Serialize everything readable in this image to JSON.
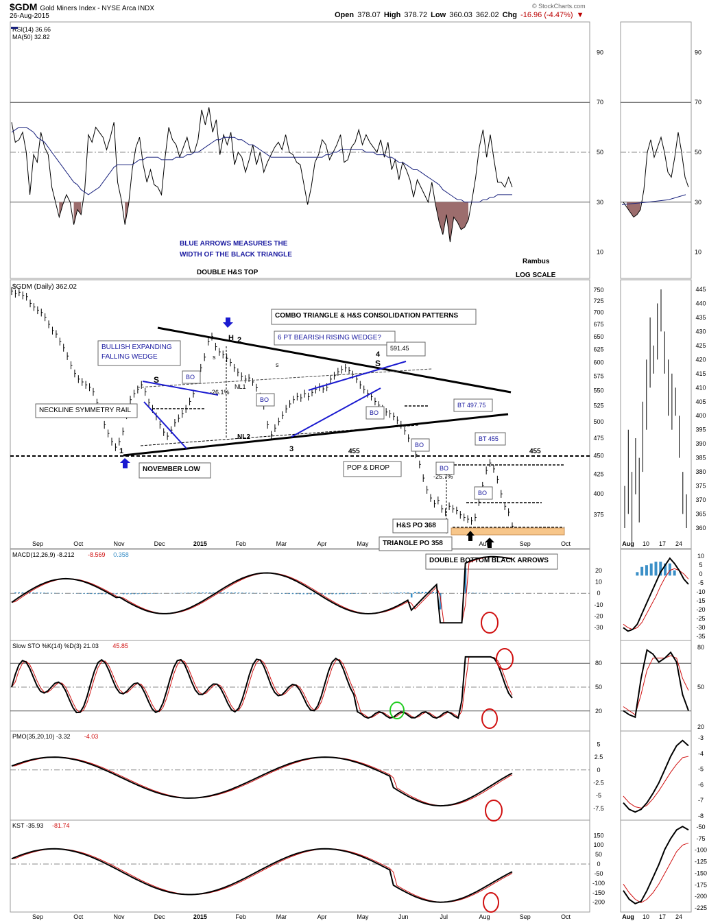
{
  "header": {
    "symbol": "$GDM",
    "name": "Gold Miners Index - NYSE Arca INDX",
    "date": "26-Aug-2015",
    "open_label": "Open",
    "open": "378.07",
    "high_label": "High",
    "high": "378.72",
    "low_label": "Low",
    "low": "360.03",
    "last": "362.02",
    "chg_label": "Chg",
    "chg": "-16.96 (-4.47%)",
    "logo": "© StockCharts.com"
  },
  "chart_data": [
    {
      "type": "line",
      "panel": "RSI",
      "legend": [
        "RSI(14) 36.66",
        "MA(50) 32.82"
      ],
      "y_ticks": [
        90,
        70,
        50,
        30,
        10
      ],
      "ylim": [
        0,
        100
      ],
      "series": [
        {
          "name": "RSI(14)",
          "color": "#000000",
          "values": [
            62,
            54,
            55,
            58,
            50,
            33,
            49,
            46,
            58,
            52,
            49,
            36,
            30,
            24,
            29,
            33,
            30,
            21,
            27,
            25,
            35,
            57,
            54,
            60,
            58,
            56,
            51,
            56,
            62,
            38,
            31,
            21,
            29,
            43,
            52,
            56,
            45,
            38,
            43,
            37,
            36,
            33,
            48,
            60,
            55,
            53,
            48,
            52,
            56,
            50,
            50,
            55,
            67,
            61,
            68,
            58,
            63,
            49,
            57,
            53,
            58,
            45,
            50,
            48,
            42,
            47,
            53,
            45,
            50,
            42,
            46,
            49,
            52,
            54,
            51,
            57,
            50,
            49,
            46,
            45,
            37,
            29,
            36,
            46,
            49,
            55,
            53,
            47,
            50,
            53,
            57,
            46,
            47,
            52,
            54,
            59,
            53,
            57,
            54,
            52,
            50,
            55,
            48,
            54,
            43,
            47,
            39,
            46,
            43,
            39,
            32,
            39,
            36,
            33,
            30,
            38,
            29,
            22,
            17,
            25,
            14,
            24,
            22,
            19,
            20,
            23,
            31,
            40,
            52,
            59,
            48,
            57,
            47,
            38,
            38,
            36,
            40,
            36
          ]
        },
        {
          "name": "MA(50)",
          "color": "#1a237e",
          "values": [
            58,
            59,
            60,
            60,
            60,
            59,
            58,
            56,
            55,
            54,
            52,
            50,
            48,
            46,
            44,
            42,
            40,
            38,
            37,
            35,
            34,
            33,
            34,
            35,
            36,
            38,
            40,
            42,
            44,
            45,
            45,
            45,
            45,
            45,
            46,
            47,
            47,
            48,
            48,
            48,
            48,
            47,
            47,
            47,
            47,
            48,
            48,
            48,
            49,
            49,
            50,
            50,
            51,
            52,
            53,
            54,
            55,
            55,
            56,
            56,
            56,
            56,
            55,
            55,
            54,
            53,
            53,
            52,
            51,
            50,
            49,
            48,
            48,
            48,
            48,
            48,
            48,
            48,
            48,
            48,
            48,
            48,
            48,
            48,
            48,
            48,
            49,
            49,
            50,
            50,
            51,
            51,
            51,
            51,
            51,
            51,
            51,
            50,
            50,
            50,
            49,
            49,
            49,
            48,
            48,
            47,
            46,
            46,
            45,
            44,
            43,
            43,
            42,
            41,
            40,
            39,
            38,
            37,
            35,
            34,
            33,
            32,
            31,
            31,
            30,
            30,
            30,
            30,
            30,
            31,
            31,
            32,
            32,
            33,
            33,
            33,
            33,
            33
          ]
        }
      ]
    },
    {
      "type": "line",
      "panel": "Price",
      "legend": "$GDM (Daily) 362.02",
      "scale": "log",
      "y_ticks": [
        750,
        725,
        700,
        675,
        650,
        625,
        600,
        575,
        550,
        525,
        500,
        475,
        450,
        425,
        400,
        375
      ],
      "x_ticks": [
        "Sep",
        "Oct",
        "Nov",
        "Dec",
        "2015",
        "Feb",
        "Mar",
        "Apr",
        "May",
        "Jun",
        "Jul",
        "Aug",
        "Sep",
        "Oct"
      ],
      "series": [
        {
          "name": "$GDM",
          "color": "#000000",
          "values": [
            748,
            742,
            745,
            738,
            735,
            720,
            712,
            705,
            700,
            690,
            675,
            662,
            655,
            640,
            628,
            612,
            595,
            580,
            570,
            565,
            560,
            556,
            548,
            530,
            515,
            495,
            482,
            470,
            462,
            470,
            485,
            510,
            535,
            545,
            552,
            560,
            548,
            530,
            520,
            508,
            495,
            484,
            478,
            487,
            498,
            505,
            512,
            520,
            532,
            545,
            570,
            590,
            610,
            640,
            650,
            630,
            620,
            615,
            608,
            600,
            590,
            582,
            575,
            570,
            572,
            565,
            555,
            540,
            525,
            495,
            480,
            490,
            500,
            510,
            520,
            528,
            535,
            540,
            538,
            545,
            540,
            547,
            552,
            556,
            553,
            556,
            570,
            576,
            583,
            587,
            590,
            585,
            578,
            570,
            560,
            552,
            545,
            540,
            532,
            526,
            520,
            515,
            512,
            508,
            502,
            495,
            486,
            475,
            462,
            452,
            438,
            420,
            405,
            395,
            388,
            392,
            382,
            378,
            385,
            382,
            380,
            375,
            372,
            370,
            368,
            372,
            390,
            410,
            430,
            440,
            432,
            418,
            400,
            385,
            378,
            362
          ]
        }
      ]
    },
    {
      "type": "line",
      "panel": "MACD",
      "legend": [
        "MACD(12,26,9) -8.212",
        "-8.569",
        "0.358"
      ],
      "y_ticks": [
        20,
        10,
        0,
        -10,
        -20,
        -30
      ],
      "ylim": [
        -38,
        28
      ]
    },
    {
      "type": "line",
      "panel": "Slow STO",
      "legend": [
        "Slow STO %K(14) %D(3) 21.03",
        "45.85"
      ],
      "y_ticks": [
        80,
        50,
        20
      ],
      "ylim": [
        0,
        100
      ]
    },
    {
      "type": "line",
      "panel": "PMO",
      "legend": [
        "PMO(35,20,10) -3.32",
        "-4.03"
      ],
      "y_ticks": [
        5.0,
        2.5,
        0.0,
        -2.5,
        -5.0,
        -7.5
      ],
      "ylim": [
        -9,
        6
      ]
    },
    {
      "type": "line",
      "panel": "KST",
      "legend": [
        "KST -35.93",
        "-81.74"
      ],
      "y_ticks": [
        150,
        100,
        50,
        0,
        -50,
        -100,
        -150,
        -200
      ],
      "ylim": [
        -230,
        180
      ]
    }
  ],
  "side_panel": {
    "x_ticks": [
      "Aug",
      "10",
      "17",
      "24"
    ],
    "rsi_ticks": [
      90,
      70,
      50,
      30,
      10
    ],
    "price_ticks": [
      445,
      440,
      435,
      430,
      425,
      420,
      415,
      410,
      405,
      400,
      395,
      390,
      385,
      380,
      375,
      370,
      365,
      360
    ],
    "macd_ticks": [
      10,
      5,
      0,
      -5,
      -10,
      -15,
      -20,
      -25,
      -30,
      -35
    ],
    "sto_ticks": [
      80,
      50,
      20
    ],
    "pmo_ticks": [
      -3,
      -4,
      -5,
      -6,
      -7,
      -8
    ],
    "kst_ticks": [
      -50,
      -75,
      -100,
      -125,
      -150,
      -175,
      -200,
      -225
    ]
  },
  "annotations": {
    "blue_arrows": "BLUE ARROWS MEASURES THE\nWIDTH OF THE BLACK TRIANGLE",
    "double_hs_top": "DOUBLE H&S TOP",
    "rambus": "Rambus",
    "log_scale": "LOG SCALE",
    "combo": "COMBO TRIANGLE & H&S CONSOLIDATION PATTERNS",
    "bearish_wedge": "6 PT BEARISH RISING WEDGE?",
    "wedge_value": "591.45",
    "bullish_wedge": "BULLISH EXPANDING\nFALLING WEDGE",
    "neckline_rail": "NECKLINE SYMMETRY RAIL",
    "november_low": "NOVEMBER LOW",
    "pop_drop": "POP & DROP",
    "bt1": "BT 497.75",
    "bt2": "BT 455",
    "hs_po": "H&S PO 368",
    "tri_po": "TRIANGLE PO 358",
    "double_bottom": "DOUBLE BOTTOM BLACK ARROWS",
    "bo": "BO",
    "pct1": "-26.1%",
    "pct2": "-25.7%",
    "nl1": "NL1",
    "nl2": "NL2",
    "level455": "455",
    "pt1": "1",
    "pt2": "2",
    "pt3": "3",
    "pt4": "4",
    "h": "H",
    "s": "S",
    "s_small": "s"
  }
}
